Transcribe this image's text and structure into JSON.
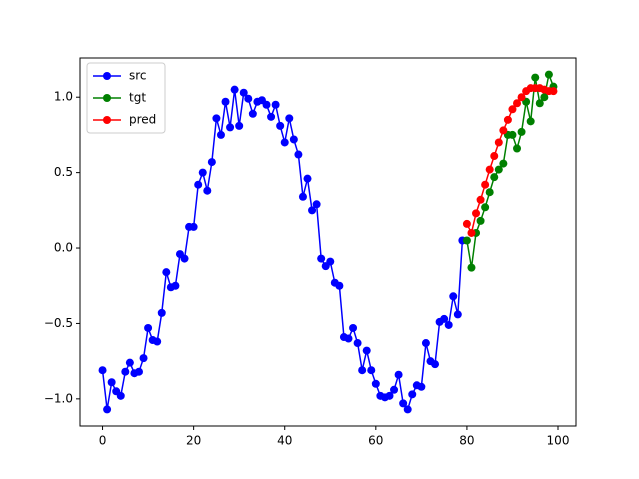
{
  "chart_data": {
    "type": "line",
    "legend": "upper left",
    "xlim": [
      -4.95,
      103.95
    ],
    "ylim": [
      -1.18,
      1.26
    ],
    "xticks": [
      0,
      20,
      40,
      60,
      80,
      100
    ],
    "yticks": [
      {
        "value": -1.0,
        "label": "−1.0"
      },
      {
        "value": -0.5,
        "label": "−0.5"
      },
      {
        "value": 0.0,
        "label": "0.0"
      },
      {
        "value": 0.5,
        "label": "0.5"
      },
      {
        "value": 1.0,
        "label": "1.0"
      }
    ],
    "series": [
      {
        "name": "src",
        "color": "#0000ff",
        "x": [
          0,
          1,
          2,
          3,
          4,
          5,
          6,
          7,
          8,
          9,
          10,
          11,
          12,
          13,
          14,
          15,
          16,
          17,
          18,
          19,
          20,
          21,
          22,
          23,
          24,
          25,
          26,
          27,
          28,
          29,
          30,
          31,
          32,
          33,
          34,
          35,
          36,
          37,
          38,
          39,
          40,
          41,
          42,
          43,
          44,
          45,
          46,
          47,
          48,
          49,
          50,
          51,
          52,
          53,
          54,
          55,
          56,
          57,
          58,
          59,
          60,
          61,
          62,
          63,
          64,
          65,
          66,
          67,
          68,
          69,
          70,
          71,
          72,
          73,
          74,
          75,
          76,
          77,
          78,
          79
        ],
        "values": [
          -0.81,
          -1.07,
          -0.89,
          -0.95,
          -0.98,
          -0.82,
          -0.76,
          -0.83,
          -0.82,
          -0.73,
          -0.53,
          -0.61,
          -0.62,
          -0.43,
          -0.16,
          -0.26,
          -0.25,
          -0.04,
          -0.07,
          0.14,
          0.14,
          0.42,
          0.5,
          0.38,
          0.57,
          0.86,
          0.75,
          0.97,
          0.8,
          1.05,
          0.81,
          1.03,
          0.99,
          0.89,
          0.97,
          0.98,
          0.95,
          0.87,
          0.95,
          0.81,
          0.7,
          0.86,
          0.72,
          0.62,
          0.34,
          0.46,
          0.25,
          0.29,
          -0.07,
          -0.12,
          -0.09,
          -0.23,
          -0.25,
          -0.59,
          -0.6,
          -0.53,
          -0.63,
          -0.81,
          -0.68,
          -0.81,
          -0.9,
          -0.98,
          -0.99,
          -0.98,
          -0.94,
          -0.84,
          -1.03,
          -1.07,
          -0.97,
          -0.91,
          -0.92,
          -0.63,
          -0.75,
          -0.77,
          -0.49,
          -0.47,
          -0.51,
          -0.32,
          -0.44,
          0.05
        ]
      },
      {
        "name": "tgt",
        "color": "#008000",
        "x": [
          80,
          81,
          82,
          83,
          84,
          85,
          86,
          87,
          88,
          89,
          90,
          91,
          92,
          93,
          94,
          95,
          96,
          97,
          98,
          99
        ],
        "values": [
          0.05,
          -0.13,
          0.1,
          0.18,
          0.27,
          0.37,
          0.47,
          0.52,
          0.56,
          0.75,
          0.75,
          0.66,
          0.77,
          0.97,
          0.84,
          1.13,
          0.96,
          1.0,
          1.15,
          1.07
        ]
      },
      {
        "name": "pred",
        "color": "#ff0000",
        "x": [
          80,
          81,
          82,
          83,
          84,
          85,
          86,
          87,
          88,
          89,
          90,
          91,
          92,
          93,
          94,
          95,
          96,
          97,
          98,
          99
        ],
        "values": [
          0.16,
          0.1,
          0.23,
          0.32,
          0.42,
          0.52,
          0.61,
          0.7,
          0.78,
          0.85,
          0.92,
          0.96,
          1.0,
          1.04,
          1.06,
          1.06,
          1.06,
          1.05,
          1.04,
          1.04
        ]
      }
    ]
  }
}
